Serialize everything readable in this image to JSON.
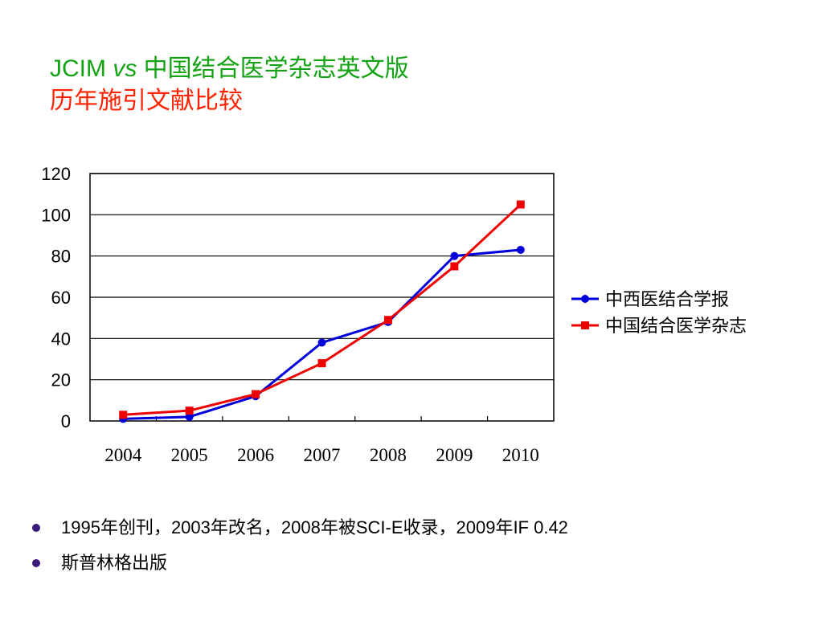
{
  "title": {
    "part1": "JCIM ",
    "vs": "vs",
    "part2": " 中国结合医学杂志英文版",
    "line2": "历年施引文献比较"
  },
  "colors": {
    "title_line1": "#13a313",
    "title_line2": "#ff2200",
    "series_blue": "#0000dd",
    "series_red": "#ee0000",
    "bullet": "#3b1a7c"
  },
  "chart_data": {
    "type": "line",
    "x": [
      "2004",
      "2005",
      "2006",
      "2007",
      "2008",
      "2009",
      "2010"
    ],
    "series": [
      {
        "name": "中西医结合学报",
        "values": [
          1,
          2,
          12,
          38,
          48,
          80,
          83
        ],
        "marker": "circle",
        "color": "#0000dd"
      },
      {
        "name": "中国结合医学杂志",
        "values": [
          3,
          5,
          13,
          28,
          49,
          75,
          105
        ],
        "marker": "square",
        "color": "#ee0000"
      }
    ],
    "yticks": [
      "0",
      "20",
      "40",
      "60",
      "80",
      "100",
      "120"
    ],
    "ylim": [
      0,
      120
    ],
    "grid": true,
    "legend_position": "right"
  },
  "bullets": [
    "1995年创刊，2003年改名，2008年被SCI-E收录，2009年IF 0.42",
    "斯普林格出版"
  ]
}
